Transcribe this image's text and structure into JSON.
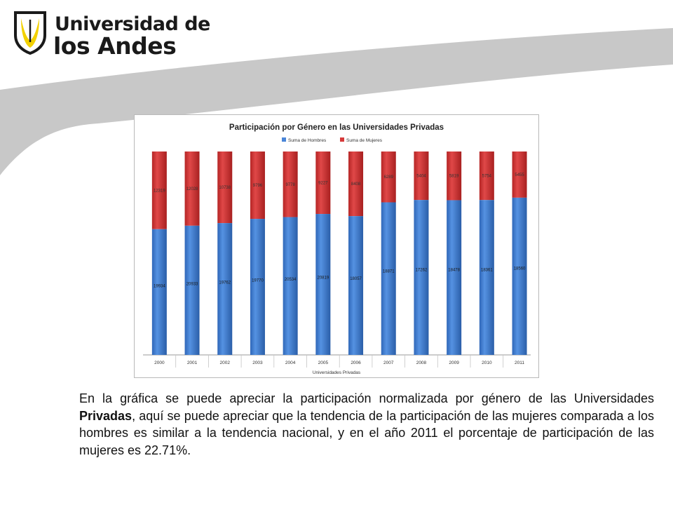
{
  "logo": {
    "line1": "Universidad de",
    "line2": "los Andes",
    "icon": "university-shield-icon"
  },
  "colors": {
    "men": "#4a86d8",
    "women": "#d63a3a",
    "swoosh": "#c7c7c7"
  },
  "chart_data": {
    "type": "bar",
    "stacked": true,
    "normalized": true,
    "title": "Participación por Género en las Universidades Privadas",
    "xlabel": "Universidades Privadas",
    "ylabel": "",
    "legend_position": "top",
    "categories": [
      "2000",
      "2001",
      "2002",
      "2003",
      "2004",
      "2005",
      "2006",
      "2007",
      "2008",
      "2009",
      "2010",
      "2011"
    ],
    "series": [
      {
        "name": "Suma de Hombres",
        "color": "#4a86d8",
        "values": [
          19934,
          20933,
          19762,
          19770,
          20534,
          20819,
          18057,
          18871,
          17262,
          18478,
          18361,
          18560
        ]
      },
      {
        "name": "Suma de Mujeres",
        "color": "#d63a3a",
        "values": [
          12319,
          12028,
          10738,
          9796,
          9778,
          9227,
          8408,
          6289,
          5404,
          5819,
          5754,
          5455
        ]
      }
    ]
  },
  "caption": {
    "part1": "En la gráfica se puede apreciar la participación normalizada por género de las Universidades ",
    "bold": "Privadas",
    "part2": ", aquí se puede apreciar que la tendencia de la participación de las mujeres comparada a los hombres es similar a la tendencia nacional, y en el año 2011 el porcentaje de participación de las mujeres es 22.71%."
  }
}
